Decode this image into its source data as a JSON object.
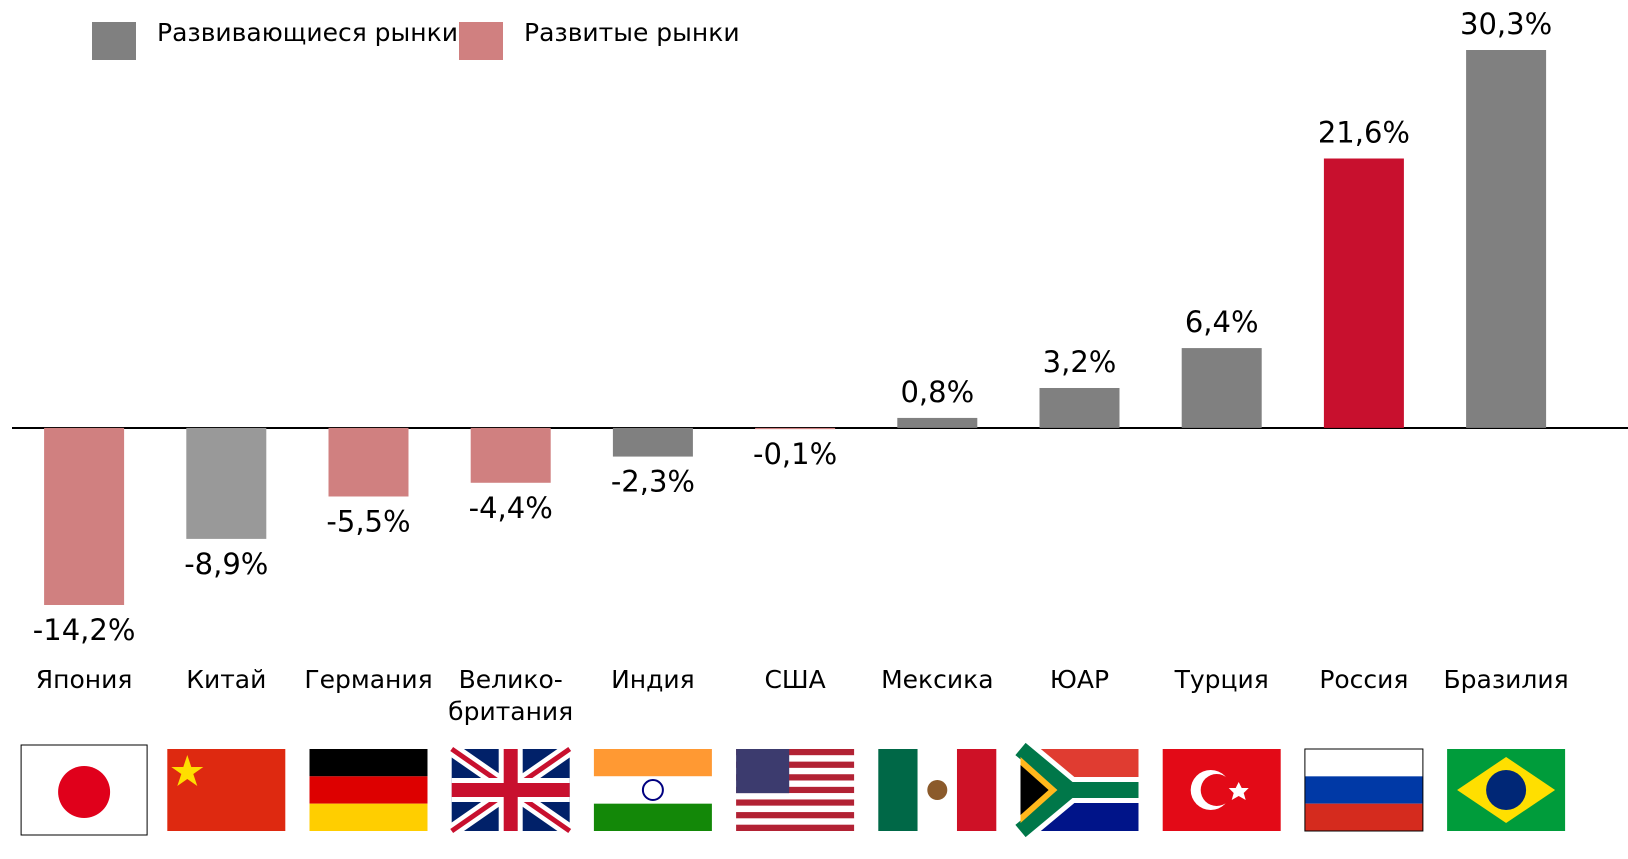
{
  "chart_data": {
    "type": "bar",
    "legend": [
      {
        "name": "Развивающиеся рынки",
        "color": "#808080"
      },
      {
        "name": "Развитые рынки",
        "color": "#d08080"
      }
    ],
    "categories": [
      "Япония",
      "Китай",
      "Германия",
      "Велико-\nбритания",
      "Индия",
      "США",
      "Мексика",
      "ЮАР",
      "Турция",
      "Россия",
      "Бразилия"
    ],
    "values": [
      -14.2,
      -8.9,
      -5.5,
      -4.4,
      -2.3,
      -0.1,
      0.8,
      3.2,
      6.4,
      21.6,
      30.3
    ],
    "value_labels": [
      "-14,2%",
      "-8,9%",
      "-5,5%",
      "-4,4%",
      "-2,3%",
      "-0,1%",
      "0,8%",
      "3,2%",
      "6,4%",
      "21,6%",
      "30,3%"
    ],
    "colors": [
      "#d08080",
      "#999999",
      "#d08080",
      "#d08080",
      "#808080",
      "#d08080",
      "#808080",
      "#808080",
      "#808080",
      "#c8102e",
      "#808080"
    ]
  }
}
